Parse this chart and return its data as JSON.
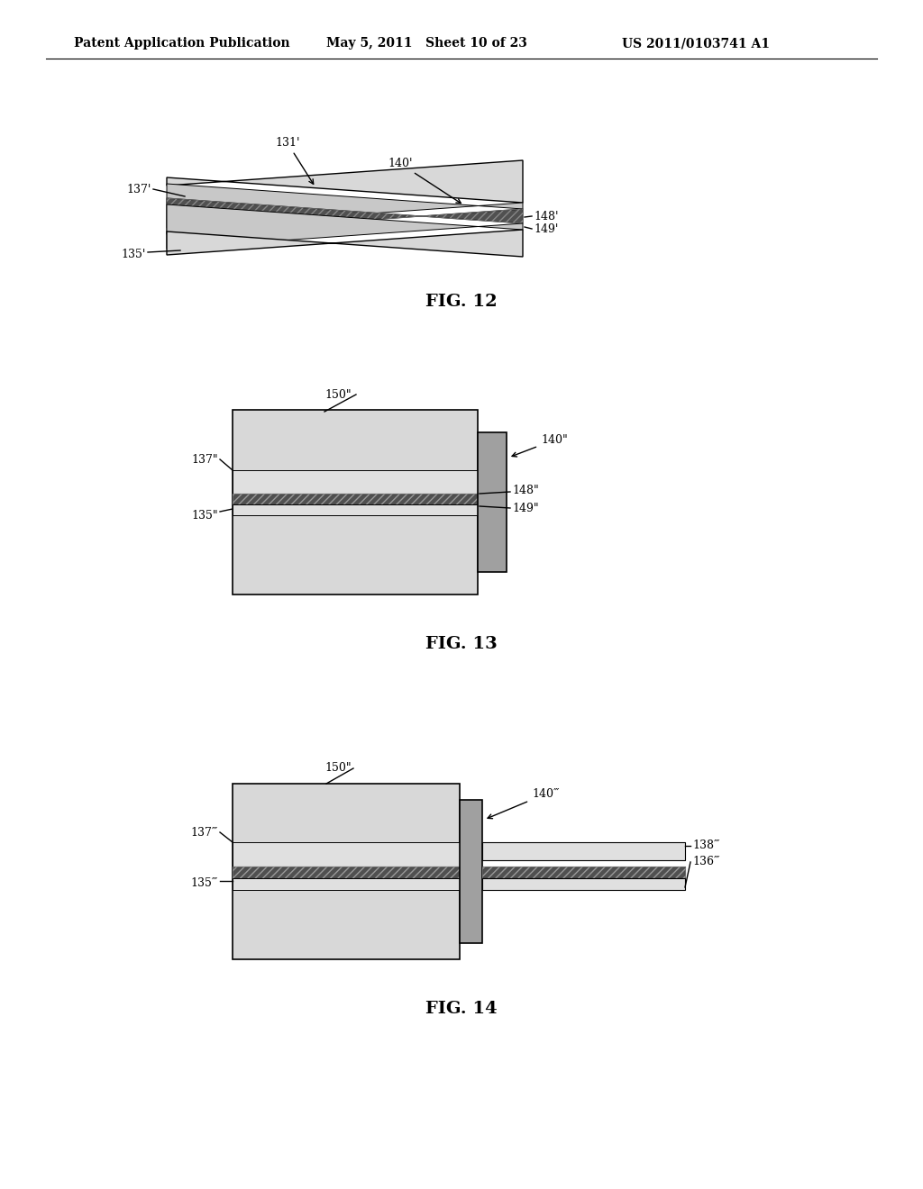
{
  "bg_color": "#ffffff",
  "header_left": "Patent Application Publication",
  "header_mid": "May 5, 2011   Sheet 10 of 23",
  "header_right": "US 2011/0103741 A1",
  "fig12_caption": "FIG. 12",
  "fig13_caption": "FIG. 13",
  "fig14_caption": "FIG. 14",
  "lbl_131p": "131'",
  "lbl_137p": "137'",
  "lbl_140p": "140'",
  "lbl_148p": "148'",
  "lbl_149p": "149'",
  "lbl_135p": "135'",
  "lbl_150pp": "150\"",
  "lbl_137pp": "137\"",
  "lbl_140pp": "140\"",
  "lbl_148pp": "148\"",
  "lbl_149pp": "149\"",
  "lbl_135pp": "135\"",
  "lbl_150ppp": "150\"",
  "lbl_137ppp": "137‴",
  "lbl_140ppp": "140‴",
  "lbl_138ppp": "138‴",
  "lbl_136ppp": "136‴",
  "lbl_135ppp": "135‴",
  "light_gray": "#d8d8d8",
  "medium_gray": "#a0a0a0",
  "dark_gray": "#505050",
  "black": "#000000"
}
